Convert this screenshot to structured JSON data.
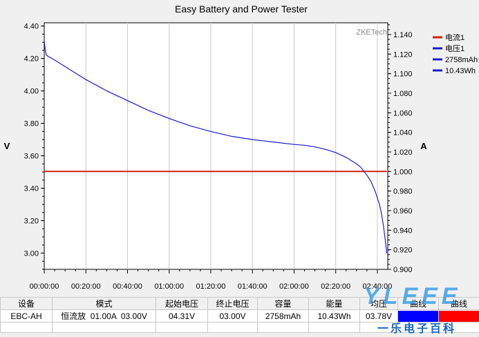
{
  "chart_data": {
    "type": "line",
    "title": "Easy Battery and Power Tester",
    "watermark": "ZKETech",
    "ylabel_left": "V",
    "ylabel_right": "A",
    "ylim_left": [
      2.9,
      4.42
    ],
    "ylim_right": [
      0.9,
      1.152
    ],
    "yticks_left": [
      "4.40",
      "4.20",
      "4.00",
      "3.80",
      "3.60",
      "3.40",
      "3.20",
      "3.00"
    ],
    "yticks_right": [
      "1.140",
      "1.120",
      "1.100",
      "1.080",
      "1.060",
      "1.040",
      "1.020",
      "1.000",
      "0.980",
      "0.960",
      "0.940",
      "0.920",
      "0.900"
    ],
    "xticks": [
      "00:00:00",
      "00:20:00",
      "00:40:00",
      "01:00:00",
      "01:20:00",
      "01:40:00",
      "02:00:00",
      "02:20:00",
      "02:40:00"
    ],
    "xlim_minutes": [
      0,
      165
    ],
    "legend_position": "right",
    "legend": [
      {
        "name": "电流1",
        "color": "#d02010"
      },
      {
        "name": "电压1",
        "color": "#1a1ad0"
      },
      {
        "name": "2758mAh",
        "color": "#1a1ad0"
      },
      {
        "name": "10.43Wh",
        "color": "#1a1ad0"
      }
    ],
    "series": [
      {
        "name": "电流1",
        "axis": "right",
        "color": "#d02010",
        "x_minutes": [
          0,
          164.5
        ],
        "values": [
          1.0,
          1.0
        ]
      },
      {
        "name": "电压1",
        "axis": "left",
        "color": "#1a1ad0",
        "x_minutes": [
          0,
          0.5,
          1,
          5,
          10,
          20,
          30,
          40,
          50,
          60,
          70,
          80,
          90,
          100,
          110,
          120,
          125,
          130,
          135,
          140,
          145,
          150,
          152,
          155,
          157,
          159,
          161,
          162,
          163,
          164,
          164.5
        ],
        "values": [
          4.31,
          4.25,
          4.22,
          4.19,
          4.15,
          4.07,
          4.0,
          3.94,
          3.88,
          3.83,
          3.785,
          3.75,
          3.72,
          3.7,
          3.685,
          3.67,
          3.665,
          3.655,
          3.64,
          3.62,
          3.59,
          3.55,
          3.53,
          3.48,
          3.44,
          3.38,
          3.3,
          3.24,
          3.16,
          3.06,
          3.0
        ]
      }
    ]
  },
  "table": {
    "headers": [
      "设备",
      "模式",
      "起始电压",
      "终止电压",
      "容量",
      "能量",
      "均压",
      "曲线",
      "曲线"
    ],
    "row": [
      "EBC-AH",
      "恒流放  01.00A  03.00V",
      "04.31V",
      "03.00V",
      "2758mAh",
      "10.43Wh",
      "03.78V"
    ],
    "swatch_colors": [
      "#0000ff",
      "#ff0000"
    ]
  },
  "overlay": {
    "logo": "YLEEE",
    "text": "一乐电子百科"
  }
}
